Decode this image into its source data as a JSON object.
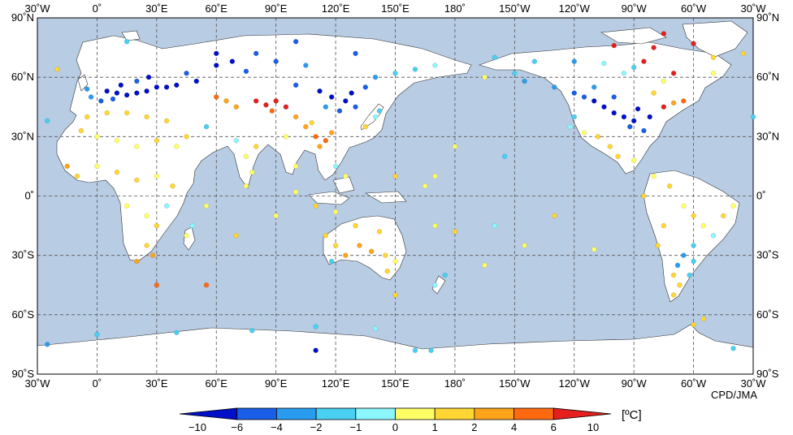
{
  "credit": "CPD/JMA",
  "legend": {
    "unit": "[ºC]",
    "bins": [
      {
        "color": "#0010c8"
      },
      {
        "color": "#1a5ee8"
      },
      {
        "color": "#2a9cf0"
      },
      {
        "color": "#49cff2"
      },
      {
        "color": "#8cf6ff"
      },
      {
        "color": "#ffff66"
      },
      {
        "color": "#ffd633"
      },
      {
        "color": "#ffa31a"
      },
      {
        "color": "#ff6a10"
      },
      {
        "color": "#e51e1e"
      }
    ],
    "tick_labels": [
      "−10",
      "−6",
      "−4",
      "−2",
      "−1",
      "0",
      "1",
      "2",
      "4",
      "6",
      "10"
    ]
  },
  "colors": {
    "ocean": "#b8cce4",
    "land": "#ffffff",
    "coast": "#333333",
    "grid": "#555555"
  },
  "axes": {
    "top_labels": [
      "30˚W",
      "0˚",
      "30˚E",
      "60˚E",
      "90˚E",
      "120˚E",
      "150˚E",
      "180˚",
      "150˚W",
      "120˚W",
      "90˚W",
      "60˚W",
      "30˚W"
    ],
    "bottom_labels": [
      "30˚W",
      "0˚",
      "30˚E",
      "60˚E",
      "90˚E",
      "120˚E",
      "150˚E",
      "180˚",
      "150˚W",
      "120˚W",
      "90˚W",
      "60˚W",
      "30˚W"
    ],
    "lat_labels": [
      "90˚N",
      "60˚N",
      "30˚N",
      "0˚",
      "30˚S",
      "60˚S",
      "90˚S"
    ]
  },
  "chart_data": {
    "type": "scatter",
    "description_units": "lon_deg (−30..330), lat_deg, anomaly class index 0..9",
    "projection": "equirectangular centered on 150E",
    "lon_range": [
      -30,
      330
    ],
    "lat_range": [
      -90,
      90
    ],
    "points": [
      {
        "lon": 5,
        "lat": 53,
        "c": 0
      },
      {
        "lon": 10,
        "lat": 52,
        "c": 0
      },
      {
        "lon": 15,
        "lat": 51,
        "c": 0
      },
      {
        "lon": 20,
        "lat": 52,
        "c": 0
      },
      {
        "lon": 25,
        "lat": 53,
        "c": 0
      },
      {
        "lon": 30,
        "lat": 55,
        "c": 0
      },
      {
        "lon": 35,
        "lat": 55,
        "c": 0
      },
      {
        "lon": 40,
        "lat": 56,
        "c": 0
      },
      {
        "lon": 20,
        "lat": 58,
        "c": 1
      },
      {
        "lon": 12,
        "lat": 56,
        "c": 0
      },
      {
        "lon": 8,
        "lat": 49,
        "c": 1
      },
      {
        "lon": 2,
        "lat": 48,
        "c": 1
      },
      {
        "lon": -5,
        "lat": 54,
        "c": 2
      },
      {
        "lon": -3,
        "lat": 50,
        "c": 2
      },
      {
        "lon": 26,
        "lat": 60,
        "c": 0
      },
      {
        "lon": 45,
        "lat": 62,
        "c": 1
      },
      {
        "lon": 50,
        "lat": 58,
        "c": 0
      },
      {
        "lon": 60,
        "lat": 66,
        "c": 0
      },
      {
        "lon": 68,
        "lat": 68,
        "c": 0
      },
      {
        "lon": 75,
        "lat": 63,
        "c": 1
      },
      {
        "lon": 90,
        "lat": 68,
        "c": 1
      },
      {
        "lon": 105,
        "lat": 66,
        "c": 2
      },
      {
        "lon": 100,
        "lat": 56,
        "c": 1
      },
      {
        "lon": 112,
        "lat": 53,
        "c": 0
      },
      {
        "lon": 118,
        "lat": 50,
        "c": 0
      },
      {
        "lon": 125,
        "lat": 48,
        "c": 0
      },
      {
        "lon": 130,
        "lat": 45,
        "c": 1
      },
      {
        "lon": 122,
        "lat": 43,
        "c": 1
      },
      {
        "lon": 115,
        "lat": 45,
        "c": 2
      },
      {
        "lon": 128,
        "lat": 52,
        "c": 0
      },
      {
        "lon": 135,
        "lat": 55,
        "c": 1
      },
      {
        "lon": 140,
        "lat": 60,
        "c": 2
      },
      {
        "lon": 150,
        "lat": 62,
        "c": 3
      },
      {
        "lon": 160,
        "lat": 64,
        "c": 3
      },
      {
        "lon": 170,
        "lat": 66,
        "c": 4
      },
      {
        "lon": 60,
        "lat": 50,
        "c": 8
      },
      {
        "lon": 65,
        "lat": 48,
        "c": 7
      },
      {
        "lon": 70,
        "lat": 45,
        "c": 7
      },
      {
        "lon": 80,
        "lat": 48,
        "c": 9
      },
      {
        "lon": 85,
        "lat": 46,
        "c": 9
      },
      {
        "lon": 90,
        "lat": 48,
        "c": 9
      },
      {
        "lon": 95,
        "lat": 45,
        "c": 9
      },
      {
        "lon": 88,
        "lat": 43,
        "c": 8
      },
      {
        "lon": 100,
        "lat": 40,
        "c": 7
      },
      {
        "lon": 105,
        "lat": 35,
        "c": 7
      },
      {
        "lon": 110,
        "lat": 30,
        "c": 8
      },
      {
        "lon": 115,
        "lat": 28,
        "c": 8
      },
      {
        "lon": 112,
        "lat": 25,
        "c": 7
      },
      {
        "lon": 118,
        "lat": 32,
        "c": 7
      },
      {
        "lon": 108,
        "lat": 37,
        "c": 6
      },
      {
        "lon": 95,
        "lat": 30,
        "c": 5
      },
      {
        "lon": 80,
        "lat": 25,
        "c": 6
      },
      {
        "lon": 75,
        "lat": 20,
        "c": 5
      },
      {
        "lon": 78,
        "lat": 12,
        "c": 5
      },
      {
        "lon": 70,
        "lat": 28,
        "c": 4
      },
      {
        "lon": 55,
        "lat": 35,
        "c": 3
      },
      {
        "lon": 45,
        "lat": 30,
        "c": 6
      },
      {
        "lon": 40,
        "lat": 25,
        "c": 5
      },
      {
        "lon": 35,
        "lat": 38,
        "c": 6
      },
      {
        "lon": 25,
        "lat": 40,
        "c": 6
      },
      {
        "lon": 15,
        "lat": 42,
        "c": 6
      },
      {
        "lon": 5,
        "lat": 42,
        "c": 6
      },
      {
        "lon": -5,
        "lat": 40,
        "c": 6
      },
      {
        "lon": -8,
        "lat": 33,
        "c": 6
      },
      {
        "lon": 0,
        "lat": 30,
        "c": 5
      },
      {
        "lon": 10,
        "lat": 28,
        "c": 5
      },
      {
        "lon": 20,
        "lat": 25,
        "c": 5
      },
      {
        "lon": 30,
        "lat": 28,
        "c": 6
      },
      {
        "lon": 0,
        "lat": 15,
        "c": 5
      },
      {
        "lon": 10,
        "lat": 12,
        "c": 6
      },
      {
        "lon": -15,
        "lat": 15,
        "c": 7
      },
      {
        "lon": -10,
        "lat": 10,
        "c": 6
      },
      {
        "lon": 20,
        "lat": 8,
        "c": 6
      },
      {
        "lon": 30,
        "lat": 10,
        "c": 5
      },
      {
        "lon": 38,
        "lat": 5,
        "c": 6
      },
      {
        "lon": 35,
        "lat": -5,
        "c": 4
      },
      {
        "lon": 25,
        "lat": -10,
        "c": 5
      },
      {
        "lon": 30,
        "lat": -15,
        "c": 6
      },
      {
        "lon": 25,
        "lat": -25,
        "c": 6
      },
      {
        "lon": 28,
        "lat": -30,
        "c": 7
      },
      {
        "lon": 20,
        "lat": -33,
        "c": 7
      },
      {
        "lon": 45,
        "lat": -20,
        "c": 5
      },
      {
        "lon": 48,
        "lat": -15,
        "c": 4
      },
      {
        "lon": 15,
        "lat": -5,
        "c": 5
      },
      {
        "lon": 115,
        "lat": -20,
        "c": 6
      },
      {
        "lon": 120,
        "lat": -25,
        "c": 6
      },
      {
        "lon": 125,
        "lat": -30,
        "c": 7
      },
      {
        "lon": 132,
        "lat": -25,
        "c": 7
      },
      {
        "lon": 138,
        "lat": -28,
        "c": 7
      },
      {
        "lon": 145,
        "lat": -30,
        "c": 6
      },
      {
        "lon": 150,
        "lat": -33,
        "c": 5
      },
      {
        "lon": 146,
        "lat": -38,
        "c": 6
      },
      {
        "lon": 130,
        "lat": -15,
        "c": 6
      },
      {
        "lon": 142,
        "lat": -18,
        "c": 6
      },
      {
        "lon": 118,
        "lat": -33,
        "c": 3
      },
      {
        "lon": 175,
        "lat": -40,
        "c": 3
      },
      {
        "lon": 170,
        "lat": -45,
        "c": 4
      },
      {
        "lon": 100,
        "lat": 2,
        "c": 5
      },
      {
        "lon": 110,
        "lat": -5,
        "c": 6
      },
      {
        "lon": 120,
        "lat": -8,
        "c": 5
      },
      {
        "lon": 125,
        "lat": 10,
        "c": 5
      },
      {
        "lon": 120,
        "lat": 15,
        "c": 4
      },
      {
        "lon": 135,
        "lat": 35,
        "c": 6
      },
      {
        "lon": 140,
        "lat": 40,
        "c": 4
      },
      {
        "lon": 142,
        "lat": 43,
        "c": 3
      },
      {
        "lon": 150,
        "lat": 10,
        "c": 6
      },
      {
        "lon": 165,
        "lat": 5,
        "c": 5
      },
      {
        "lon": 170,
        "lat": -15,
        "c": 5
      },
      {
        "lon": 180,
        "lat": -18,
        "c": 6
      },
      {
        "lon": 200,
        "lat": -15,
        "c": 4
      },
      {
        "lon": 205,
        "lat": 20,
        "c": 3
      },
      {
        "lon": 195,
        "lat": 60,
        "c": 5
      },
      {
        "lon": 210,
        "lat": 62,
        "c": 3
      },
      {
        "lon": 215,
        "lat": 58,
        "c": 2
      },
      {
        "lon": 230,
        "lat": 55,
        "c": 2
      },
      {
        "lon": 240,
        "lat": 52,
        "c": 1
      },
      {
        "lon": 245,
        "lat": 50,
        "c": 1
      },
      {
        "lon": 250,
        "lat": 48,
        "c": 0
      },
      {
        "lon": 255,
        "lat": 45,
        "c": 0
      },
      {
        "lon": 260,
        "lat": 42,
        "c": 0
      },
      {
        "lon": 265,
        "lat": 40,
        "c": 0
      },
      {
        "lon": 270,
        "lat": 38,
        "c": 0
      },
      {
        "lon": 272,
        "lat": 44,
        "c": 0
      },
      {
        "lon": 268,
        "lat": 35,
        "c": 1
      },
      {
        "lon": 275,
        "lat": 33,
        "c": 1
      },
      {
        "lon": 278,
        "lat": 40,
        "c": 0
      },
      {
        "lon": 260,
        "lat": 50,
        "c": 1
      },
      {
        "lon": 250,
        "lat": 55,
        "c": 2
      },
      {
        "lon": 240,
        "lat": 40,
        "c": 3
      },
      {
        "lon": 238,
        "lat": 35,
        "c": 4
      },
      {
        "lon": 245,
        "lat": 32,
        "c": 5
      },
      {
        "lon": 252,
        "lat": 30,
        "c": 6
      },
      {
        "lon": 258,
        "lat": 25,
        "c": 6
      },
      {
        "lon": 262,
        "lat": 20,
        "c": 6
      },
      {
        "lon": 270,
        "lat": 18,
        "c": 5
      },
      {
        "lon": 280,
        "lat": 10,
        "c": 5
      },
      {
        "lon": 285,
        "lat": 45,
        "c": 9
      },
      {
        "lon": 290,
        "lat": 47,
        "c": 7
      },
      {
        "lon": 295,
        "lat": 48,
        "c": 8
      },
      {
        "lon": 280,
        "lat": 52,
        "c": 6
      },
      {
        "lon": 285,
        "lat": 58,
        "c": 5
      },
      {
        "lon": 265,
        "lat": 62,
        "c": 4
      },
      {
        "lon": 270,
        "lat": 65,
        "c": 3
      },
      {
        "lon": 290,
        "lat": 62,
        "c": 9
      },
      {
        "lon": 280,
        "lat": 75,
        "c": 9
      },
      {
        "lon": 260,
        "lat": 76,
        "c": 9
      },
      {
        "lon": 310,
        "lat": 62,
        "c": 5
      },
      {
        "lon": 288,
        "lat": 5,
        "c": 6
      },
      {
        "lon": 295,
        "lat": -5,
        "c": 5
      },
      {
        "lon": 300,
        "lat": -10,
        "c": 6
      },
      {
        "lon": 305,
        "lat": -15,
        "c": 5
      },
      {
        "lon": 315,
        "lat": -10,
        "c": 6
      },
      {
        "lon": 320,
        "lat": -5,
        "c": 5
      },
      {
        "lon": 310,
        "lat": -20,
        "c": 4
      },
      {
        "lon": 300,
        "lat": -25,
        "c": 3
      },
      {
        "lon": 295,
        "lat": -30,
        "c": 2
      },
      {
        "lon": 300,
        "lat": -33,
        "c": 3
      },
      {
        "lon": 292,
        "lat": -35,
        "c": 2
      },
      {
        "lon": 290,
        "lat": -40,
        "c": 6
      },
      {
        "lon": 293,
        "lat": -45,
        "c": 6
      },
      {
        "lon": 290,
        "lat": -50,
        "c": 6
      },
      {
        "lon": 298,
        "lat": -40,
        "c": 3
      },
      {
        "lon": 285,
        "lat": -15,
        "c": 6
      },
      {
        "lon": 282,
        "lat": -25,
        "c": 6
      },
      {
        "lon": 300,
        "lat": -65,
        "c": 6
      },
      {
        "lon": 305,
        "lat": -62,
        "c": 6
      },
      {
        "lon": 40,
        "lat": -69,
        "c": 3
      },
      {
        "lon": 78,
        "lat": -68,
        "c": 3
      },
      {
        "lon": 110,
        "lat": -66,
        "c": 3
      },
      {
        "lon": 140,
        "lat": -67,
        "c": 4
      },
      {
        "lon": 160,
        "lat": -78,
        "c": 3
      },
      {
        "lon": 168,
        "lat": -78,
        "c": 3
      },
      {
        "lon": 320,
        "lat": -77,
        "c": 3
      },
      {
        "lon": -25,
        "lat": -75,
        "c": 2
      },
      {
        "lon": 0,
        "lat": -70,
        "c": 3
      },
      {
        "lon": 110,
        "lat": -78,
        "c": 0
      },
      {
        "lon": 330,
        "lat": 40,
        "c": 3
      },
      {
        "lon": -25,
        "lat": 38,
        "c": 3
      },
      {
        "lon": 30,
        "lat": -45,
        "c": 8
      },
      {
        "lon": 55,
        "lat": -45,
        "c": 8
      },
      {
        "lon": 150,
        "lat": -50,
        "c": 6
      },
      {
        "lon": -20,
        "lat": 64,
        "c": 6
      },
      {
        "lon": 15,
        "lat": 78,
        "c": 3
      },
      {
        "lon": 310,
        "lat": 70,
        "c": 6
      },
      {
        "lon": 100,
        "lat": 78,
        "c": 1
      },
      {
        "lon": 130,
        "lat": 72,
        "c": 1
      },
      {
        "lon": 60,
        "lat": 72,
        "c": 0
      },
      {
        "lon": 80,
        "lat": 72,
        "c": 1
      },
      {
        "lon": 200,
        "lat": 70,
        "c": 3
      },
      {
        "lon": 220,
        "lat": 68,
        "c": 3
      },
      {
        "lon": 240,
        "lat": 68,
        "c": 2
      },
      {
        "lon": 255,
        "lat": 67,
        "c": 4
      },
      {
        "lon": 275,
        "lat": 68,
        "c": 9
      },
      {
        "lon": 285,
        "lat": 82,
        "c": 9
      },
      {
        "lon": 300,
        "lat": 77,
        "c": 9
      },
      {
        "lon": 325,
        "lat": 72,
        "c": 6
      },
      {
        "lon": 180,
        "lat": 25,
        "c": 5
      },
      {
        "lon": 170,
        "lat": 10,
        "c": 5
      },
      {
        "lon": 215,
        "lat": -25,
        "c": 5
      },
      {
        "lon": 230,
        "lat": -10,
        "c": 6
      },
      {
        "lon": 195,
        "lat": -35,
        "c": 5
      },
      {
        "lon": 250,
        "lat": -27,
        "c": 5
      },
      {
        "lon": 275,
        "lat": 0,
        "c": 6
      },
      {
        "lon": 55,
        "lat": -5,
        "c": 5
      },
      {
        "lon": 70,
        "lat": -20,
        "c": 6
      },
      {
        "lon": 90,
        "lat": -10,
        "c": 5
      },
      {
        "lon": 75,
        "lat": 5,
        "c": 5
      },
      {
        "lon": 100,
        "lat": 15,
        "c": 5
      }
    ]
  }
}
